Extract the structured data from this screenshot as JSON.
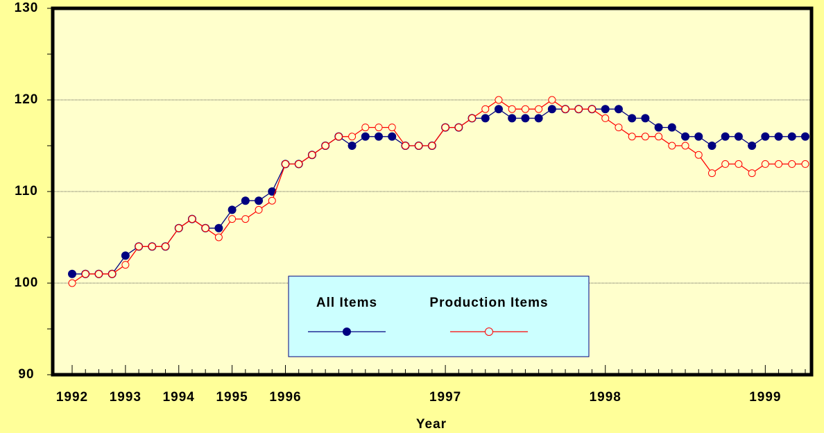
{
  "chart_data": {
    "type": "line",
    "x_label": "Year",
    "categories": [
      "1992",
      null,
      null,
      null,
      "1993",
      null,
      null,
      null,
      "1994",
      null,
      null,
      null,
      "1995",
      null,
      null,
      null,
      "1996",
      null,
      null,
      null,
      null,
      null,
      null,
      null,
      null,
      null,
      null,
      null,
      "1997",
      null,
      null,
      null,
      null,
      null,
      null,
      null,
      null,
      null,
      null,
      null,
      "1998",
      null,
      null,
      null,
      null,
      null,
      null,
      null,
      null,
      null,
      null,
      null,
      "1999",
      null,
      null,
      null
    ],
    "series": [
      {
        "name": "All Items",
        "color": "#000080",
        "marker": "filled",
        "values": [
          101,
          101,
          101,
          101,
          103,
          104,
          104,
          104,
          106,
          107,
          106,
          106,
          108,
          109,
          109,
          110,
          113,
          113,
          114,
          115,
          116,
          115,
          116,
          116,
          116,
          115,
          115,
          115,
          117,
          117,
          118,
          118,
          119,
          118,
          118,
          118,
          119,
          119,
          119,
          119,
          119,
          119,
          118,
          118,
          117,
          117,
          116,
          116,
          115,
          116,
          116,
          115,
          116,
          116,
          116,
          116
        ]
      },
      {
        "name": "Production Items",
        "color": "#ff0000",
        "marker": "open",
        "values": [
          100,
          101,
          101,
          101,
          102,
          104,
          104,
          104,
          106,
          107,
          106,
          105,
          107,
          107,
          108,
          109,
          113,
          113,
          114,
          115,
          116,
          116,
          117,
          117,
          117,
          115,
          115,
          115,
          117,
          117,
          118,
          119,
          120,
          119,
          119,
          119,
          120,
          119,
          119,
          119,
          118,
          117,
          116,
          116,
          116,
          115,
          115,
          114,
          112,
          113,
          113,
          112,
          113,
          113,
          113,
          113
        ]
      }
    ],
    "ylim": [
      90,
      130
    ],
    "yticks": [
      90,
      100,
      110,
      120,
      130
    ],
    "grid": true,
    "legend": "bottom-center"
  }
}
